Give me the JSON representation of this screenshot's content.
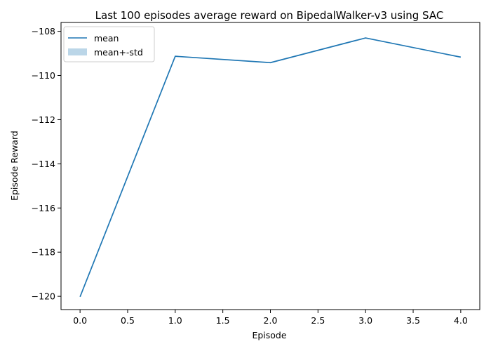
{
  "chart_data": {
    "type": "line",
    "title": "Last 100 episodes average reward on BipedalWalker-v3 using SAC",
    "xlabel": "Episode",
    "ylabel": "Episode Reward",
    "xlim": [
      -0.2,
      4.2
    ],
    "ylim": [
      -120.6,
      -107.6
    ],
    "xticks": [
      0.0,
      0.5,
      1.0,
      1.5,
      2.0,
      2.5,
      3.0,
      3.5,
      4.0
    ],
    "xtick_labels": [
      "0.0",
      "0.5",
      "1.0",
      "1.5",
      "2.0",
      "2.5",
      "3.0",
      "3.5",
      "4.0"
    ],
    "yticks": [
      -120,
      -118,
      -116,
      -114,
      -112,
      -110,
      -108
    ],
    "ytick_labels": [
      "−120",
      "−118",
      "−116",
      "−114",
      "−112",
      "−110",
      "−108"
    ],
    "grid": false,
    "legend_position": "top-left",
    "series": [
      {
        "name": "mean",
        "kind": "line",
        "color": "#1f77b4",
        "x": [
          0,
          1,
          2,
          3,
          4
        ],
        "y": [
          -120.02,
          -109.13,
          -109.42,
          -108.3,
          -109.17
        ]
      },
      {
        "name": "mean+-std",
        "kind": "band",
        "color": "#1f77b4",
        "opacity": 0.3,
        "x": [
          0,
          1,
          2,
          3,
          4
        ],
        "lower": [
          -120.02,
          -109.13,
          -109.42,
          -108.3,
          -109.17
        ],
        "upper": [
          -120.02,
          -109.13,
          -109.42,
          -108.3,
          -109.17
        ]
      }
    ]
  }
}
